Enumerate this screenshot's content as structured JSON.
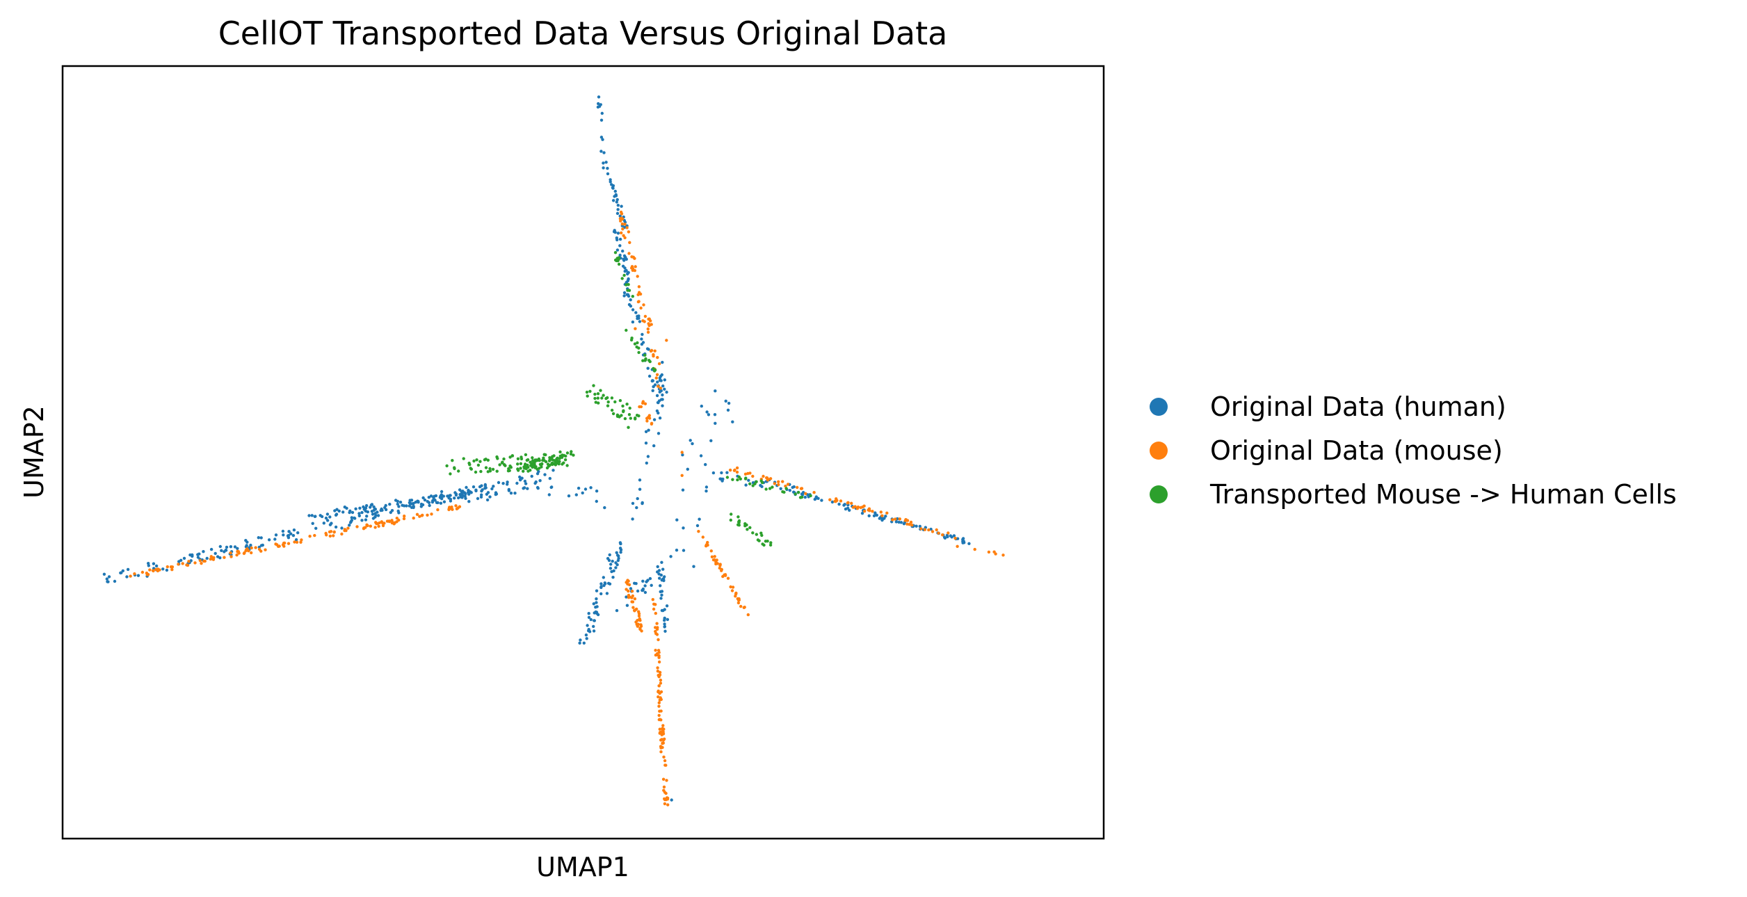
{
  "chart_data": {
    "type": "scatter",
    "title": "CellOT Transported Data Versus Original Data",
    "xlabel": "UMAP1",
    "ylabel": "UMAP2",
    "xticks": false,
    "yticks": false,
    "grid": false,
    "legend_position": "right",
    "xlim": [
      0,
      1000
    ],
    "ylim": [
      0,
      1000
    ],
    "series": [
      {
        "name": "Original Data (human)",
        "color": "#1f77b4",
        "segments": [
          {
            "from": [
              44,
              335
            ],
            "to": [
              405,
              455
            ],
            "count": 160,
            "spread": 7
          },
          {
            "from": [
              240,
              418
            ],
            "to": [
              400,
              447
            ],
            "count": 90,
            "spread": 5
          },
          {
            "from": [
              400,
              445
            ],
            "to": [
              470,
              470
            ],
            "count": 40,
            "spread": 10
          },
          {
            "from": [
              515,
              957
            ],
            "to": [
              520,
              880
            ],
            "count": 10,
            "spread": 2
          },
          {
            "from": [
              520,
              880
            ],
            "to": [
              540,
              790
            ],
            "count": 30,
            "spread": 3
          },
          {
            "from": [
              530,
              790
            ],
            "to": [
              545,
              720
            ],
            "count": 28,
            "spread": 3
          },
          {
            "from": [
              540,
              720
            ],
            "to": [
              575,
              560
            ],
            "count": 45,
            "spread": 4
          },
          {
            "from": [
              575,
              560
            ],
            "to": [
              575,
              605
            ],
            "count": 10,
            "spread": 2
          },
          {
            "from": [
              535,
              383
            ],
            "to": [
              500,
              250
            ],
            "count": 60,
            "spread": 5
          },
          {
            "from": [
              540,
              300
            ],
            "to": [
              575,
              360
            ],
            "count": 22,
            "spread": 8
          },
          {
            "from": [
              575,
              350
            ],
            "to": [
              580,
              265
            ],
            "count": 25,
            "spread": 3
          },
          {
            "from": [
              625,
              470
            ],
            "to": [
              700,
              455
            ],
            "count": 25,
            "spread": 6
          },
          {
            "from": [
              700,
              450
            ],
            "to": [
              875,
              382
            ],
            "count": 80,
            "spread": 3
          },
          {
            "from": [
              550,
              410
            ],
            "to": [
              580,
              620
            ],
            "count": 25,
            "spread": 6
          },
          {
            "from": [
              590,
              330
            ],
            "to": [
              635,
              600
            ],
            "count": 30,
            "spread": 22
          },
          {
            "from": [
              455,
              460
            ],
            "to": [
              520,
              440
            ],
            "count": 15,
            "spread": 12
          }
        ],
        "points": [
          [
            515,
            960
          ],
          [
            585,
            50
          ]
        ]
      },
      {
        "name": "Original Data (mouse)",
        "color": "#ff7f0e",
        "segments": [
          {
            "from": [
              65,
              340
            ],
            "to": [
              385,
              430
            ],
            "count": 130,
            "spread": 3
          },
          {
            "from": [
              540,
              340
            ],
            "to": [
              555,
              270
            ],
            "count": 40,
            "spread": 3
          },
          {
            "from": [
              568,
              310
            ],
            "to": [
              580,
              40
            ],
            "count": 90,
            "spread": 2
          },
          {
            "from": [
              610,
              400
            ],
            "to": [
              660,
              285
            ],
            "count": 40,
            "spread": 2
          },
          {
            "from": [
              640,
              480
            ],
            "to": [
              860,
              390
            ],
            "count": 70,
            "spread": 3
          },
          {
            "from": [
              855,
              377
            ],
            "to": [
              955,
              360
            ],
            "count": 6,
            "spread": 2
          },
          {
            "from": [
              535,
              810
            ],
            "to": [
              565,
              650
            ],
            "count": 45,
            "spread": 4
          },
          {
            "from": [
              567,
              640
            ],
            "to": [
              575,
              580
            ],
            "count": 12,
            "spread": 3
          },
          {
            "from": [
              555,
              565
            ],
            "to": [
              565,
              535
            ],
            "count": 12,
            "spread": 4
          }
        ],
        "points": [
          [
            550,
            660
          ],
          [
            580,
            645
          ],
          [
            595,
            500
          ],
          [
            595,
            470
          ]
        ]
      },
      {
        "name": "Transported Mouse -> Human Cells",
        "color": "#2ca02c",
        "segments": [
          {
            "from": [
              370,
              480
            ],
            "to": [
              485,
              492
            ],
            "count": 80,
            "spread": 10
          },
          {
            "from": [
              440,
              480
            ],
            "to": [
              485,
              492
            ],
            "count": 60,
            "spread": 6
          },
          {
            "from": [
              510,
              580
            ],
            "to": [
              550,
              540
            ],
            "count": 40,
            "spread": 8
          },
          {
            "from": [
              540,
              660
            ],
            "to": [
              570,
              600
            ],
            "count": 18,
            "spread": 4
          },
          {
            "from": [
              640,
              420
            ],
            "to": [
              680,
              380
            ],
            "count": 25,
            "spread": 4
          },
          {
            "from": [
              640,
              470
            ],
            "to": [
              720,
              440
            ],
            "count": 25,
            "spread": 4
          },
          {
            "from": [
              530,
              760
            ],
            "to": [
              545,
              700
            ],
            "count": 15,
            "spread": 3
          }
        ],
        "points": []
      }
    ]
  }
}
